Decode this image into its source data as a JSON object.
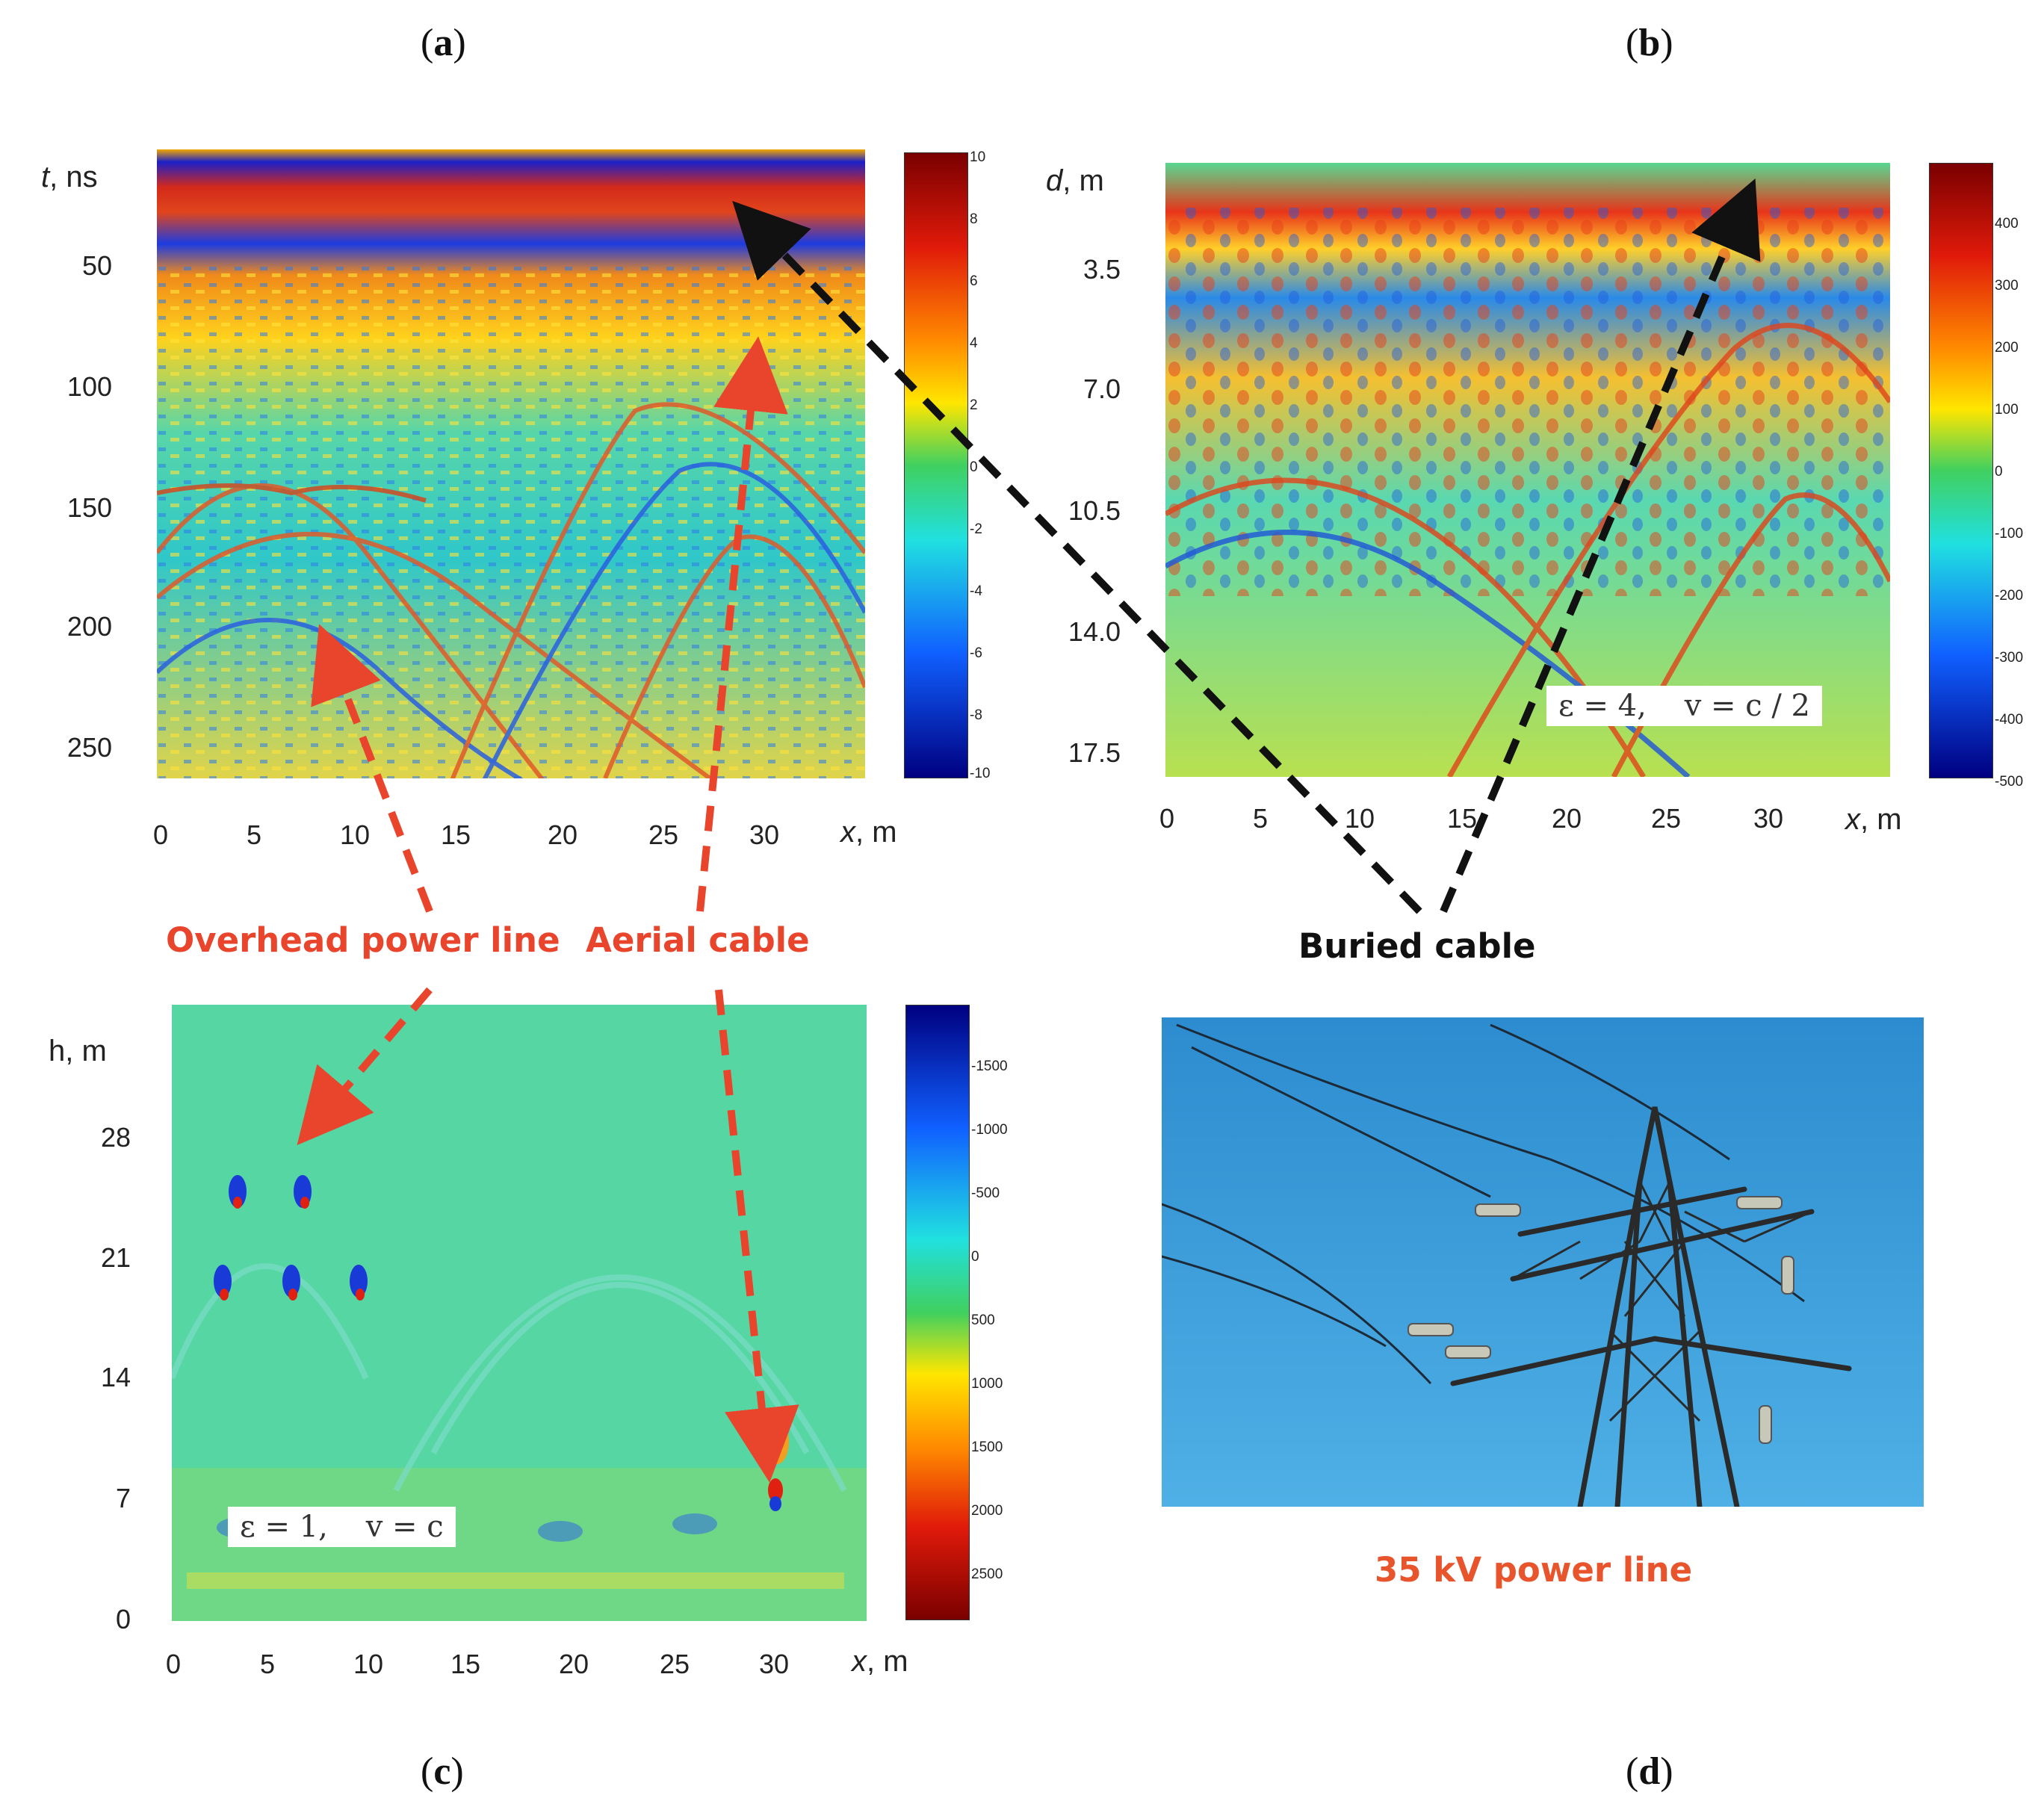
{
  "panels": {
    "a": {
      "letter": "a",
      "ylabel_var": "t",
      "ylabel_unit": ", ns",
      "yticks": [
        "50",
        "100",
        "150",
        "200",
        "250"
      ],
      "xticks": [
        "0",
        "5",
        "10",
        "15",
        "20",
        "25",
        "30"
      ],
      "xlabel_var": "x",
      "xlabel_unit": ", m",
      "colorbar_ticks": [
        "10",
        "8",
        "6",
        "4",
        "2",
        "0",
        "-2",
        "-4",
        "-6",
        "-8",
        "-10"
      ]
    },
    "b": {
      "letter": "b",
      "ylabel_var": "d",
      "ylabel_unit": ", m",
      "yticks": [
        "3.5",
        "7.0",
        "10.5",
        "14.0",
        "17.5"
      ],
      "xticks": [
        "0",
        "5",
        "10",
        "15",
        "20",
        "25",
        "30"
      ],
      "xlabel_var": "x",
      "xlabel_unit": ", m",
      "formula": "ε = 4,    v = c / 2",
      "colorbar_ticks": [
        "400",
        "300",
        "200",
        "100",
        "0",
        "-100",
        "-200",
        "-300",
        "-400",
        "-500"
      ]
    },
    "c": {
      "letter": "c",
      "ylabel": "h, m",
      "yticks": [
        "28",
        "21",
        "14",
        "7",
        "0"
      ],
      "xticks": [
        "0",
        "5",
        "10",
        "15",
        "20",
        "25",
        "30"
      ],
      "xlabel_var": "x",
      "xlabel_unit": ", m",
      "formula": "ε = 1,    v = c",
      "colorbar_ticks": [
        "-1500",
        "-1000",
        "-500",
        "0",
        "500",
        "1000",
        "1500",
        "2000",
        "2500"
      ]
    },
    "d": {
      "letter": "d",
      "caption": "35 kV power line"
    }
  },
  "callouts": {
    "overhead": "Overhead power line",
    "aerial": "Aerial cable",
    "buried": "Buried cable"
  },
  "colors": {
    "red_arrow": "#e8452c",
    "black_arrow": "#111111",
    "sky": "#3f9fd8"
  }
}
